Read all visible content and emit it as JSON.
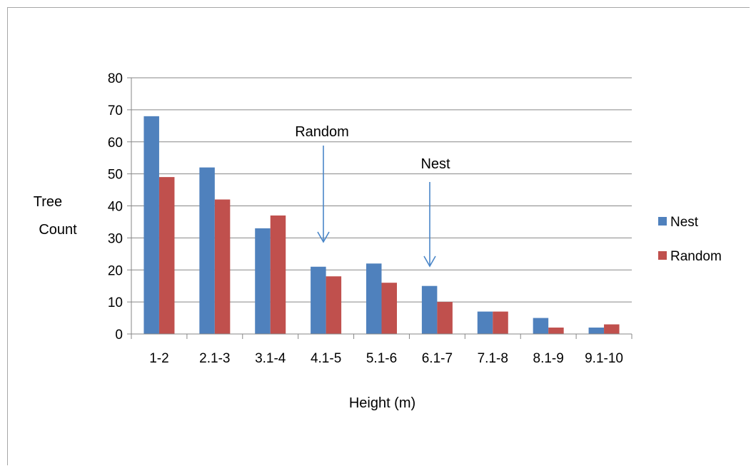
{
  "chart_data": {
    "type": "bar",
    "title": "",
    "xlabel": "Height (m)",
    "ylabel_lines": [
      "Tree",
      "Count"
    ],
    "categories": [
      "1-2",
      "2.1-3",
      "3.1-4",
      "4.1-5",
      "5.1-6",
      "6.1-7",
      "7.1-8",
      "8.1-9",
      "9.1-10"
    ],
    "series": [
      {
        "name": "Nest",
        "color": "#4f81bd",
        "values": [
          68,
          52,
          33,
          21,
          22,
          15,
          7,
          5,
          2
        ]
      },
      {
        "name": "Random",
        "color": "#c0504d",
        "values": [
          49,
          42,
          37,
          18,
          16,
          10,
          7,
          2,
          3
        ]
      }
    ],
    "ylim": [
      0,
      80
    ],
    "yticks": [
      0,
      10,
      20,
      30,
      40,
      50,
      60,
      70,
      80
    ],
    "grid": true,
    "legend_position": "right",
    "annotations": [
      {
        "text": "Random",
        "category": "4.1-5"
      },
      {
        "text": "Nest",
        "category": "6.1-7"
      }
    ],
    "arrow_color": "#4a86c8",
    "grid_color": "#878787"
  }
}
